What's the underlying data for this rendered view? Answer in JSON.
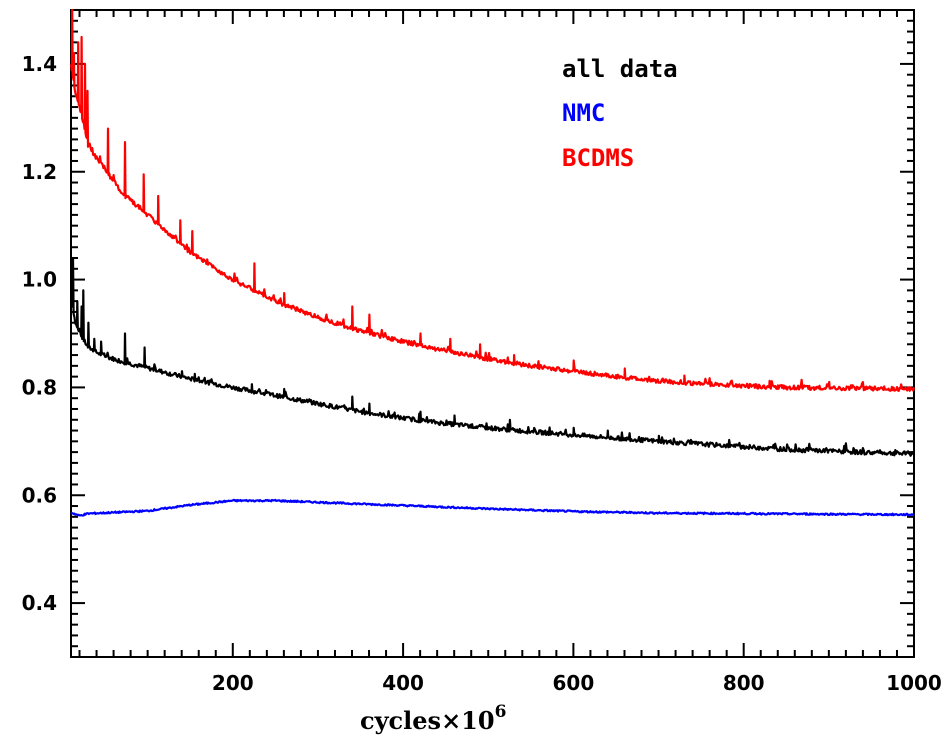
{
  "chart_data": {
    "type": "line",
    "title": "",
    "xlabel": "cycles×10",
    "xlabel_superscript": "6",
    "ylabel": "",
    "xlim": [
      10,
      1000
    ],
    "ylim": [
      0.3,
      1.5
    ],
    "x_ticks": [
      200,
      400,
      600,
      800,
      1000
    ],
    "x_tick_labels": [
      "200",
      "400",
      "600",
      "800",
      "1000"
    ],
    "y_ticks": [
      0.4,
      0.6,
      0.8,
      1.0,
      1.2,
      1.4
    ],
    "y_tick_labels": [
      "0.4",
      "0.6",
      "0.8",
      "1.0",
      "1.2",
      "1.4"
    ],
    "grid": false,
    "legend_position": "top-right",
    "series": [
      {
        "name": "all data",
        "color": "#000000",
        "x": [
          10,
          15,
          20,
          30,
          40,
          50,
          70,
          100,
          150,
          200,
          250,
          300,
          350,
          400,
          450,
          500,
          550,
          600,
          650,
          700,
          750,
          800,
          850,
          900,
          950,
          1000
        ],
        "values": [
          0.97,
          0.92,
          0.9,
          0.875,
          0.865,
          0.858,
          0.848,
          0.836,
          0.816,
          0.8,
          0.785,
          0.77,
          0.755,
          0.743,
          0.733,
          0.725,
          0.718,
          0.712,
          0.706,
          0.7,
          0.695,
          0.69,
          0.685,
          0.682,
          0.679,
          0.677
        ],
        "spikes": [
          [
            12,
            1.04
          ],
          [
            17,
            0.96
          ],
          [
            22,
            0.95
          ],
          [
            24,
            0.98
          ],
          [
            30,
            0.92
          ],
          [
            37,
            0.89
          ],
          [
            45,
            0.885
          ],
          [
            73,
            0.9
          ],
          [
            96,
            0.874
          ],
          [
            140,
            0.83
          ],
          [
            155,
            0.825
          ],
          [
            222,
            0.806
          ],
          [
            260,
            0.797
          ],
          [
            340,
            0.783
          ],
          [
            360,
            0.77
          ],
          [
            420,
            0.755
          ],
          [
            460,
            0.748
          ],
          [
            525,
            0.74
          ],
          [
            600,
            0.725
          ],
          [
            640,
            0.72
          ],
          [
            700,
            0.71
          ]
        ]
      },
      {
        "name": "NMC",
        "color": "#0000ff",
        "x": [
          10,
          20,
          30,
          60,
          100,
          150,
          200,
          250,
          300,
          400,
          500,
          600,
          700,
          800,
          900,
          1000
        ],
        "values": [
          0.568,
          0.562,
          0.566,
          0.568,
          0.571,
          0.582,
          0.59,
          0.59,
          0.587,
          0.581,
          0.575,
          0.57,
          0.567,
          0.566,
          0.565,
          0.564
        ]
      },
      {
        "name": "BCDMS",
        "color": "#ff0000",
        "x": [
          10,
          15,
          20,
          25,
          30,
          40,
          50,
          70,
          100,
          150,
          200,
          250,
          300,
          350,
          400,
          450,
          500,
          550,
          600,
          650,
          700,
          750,
          800,
          850,
          900,
          950,
          1000
        ],
        "values": [
          1.4,
          1.35,
          1.32,
          1.29,
          1.25,
          1.225,
          1.205,
          1.16,
          1.12,
          1.05,
          1.0,
          0.96,
          0.93,
          0.905,
          0.885,
          0.868,
          0.853,
          0.84,
          0.83,
          0.82,
          0.812,
          0.807,
          0.803,
          0.8,
          0.799,
          0.798,
          0.797
        ],
        "spikes": [
          [
            11,
            1.5
          ],
          [
            13,
            1.42
          ],
          [
            18,
            1.44
          ],
          [
            22,
            1.45
          ],
          [
            26,
            1.4
          ],
          [
            29,
            1.35
          ],
          [
            53,
            1.28
          ],
          [
            73,
            1.255
          ],
          [
            95,
            1.195
          ],
          [
            112,
            1.155
          ],
          [
            138,
            1.11
          ],
          [
            152,
            1.09
          ],
          [
            225,
            1.03
          ],
          [
            260,
            0.975
          ],
          [
            340,
            0.95
          ],
          [
            360,
            0.935
          ],
          [
            420,
            0.9
          ],
          [
            455,
            0.89
          ],
          [
            490,
            0.88
          ],
          [
            530,
            0.86
          ],
          [
            600,
            0.85
          ],
          [
            660,
            0.835
          ],
          [
            730,
            0.822
          ],
          [
            830,
            0.812
          ],
          [
            900,
            0.81
          ]
        ]
      }
    ]
  }
}
